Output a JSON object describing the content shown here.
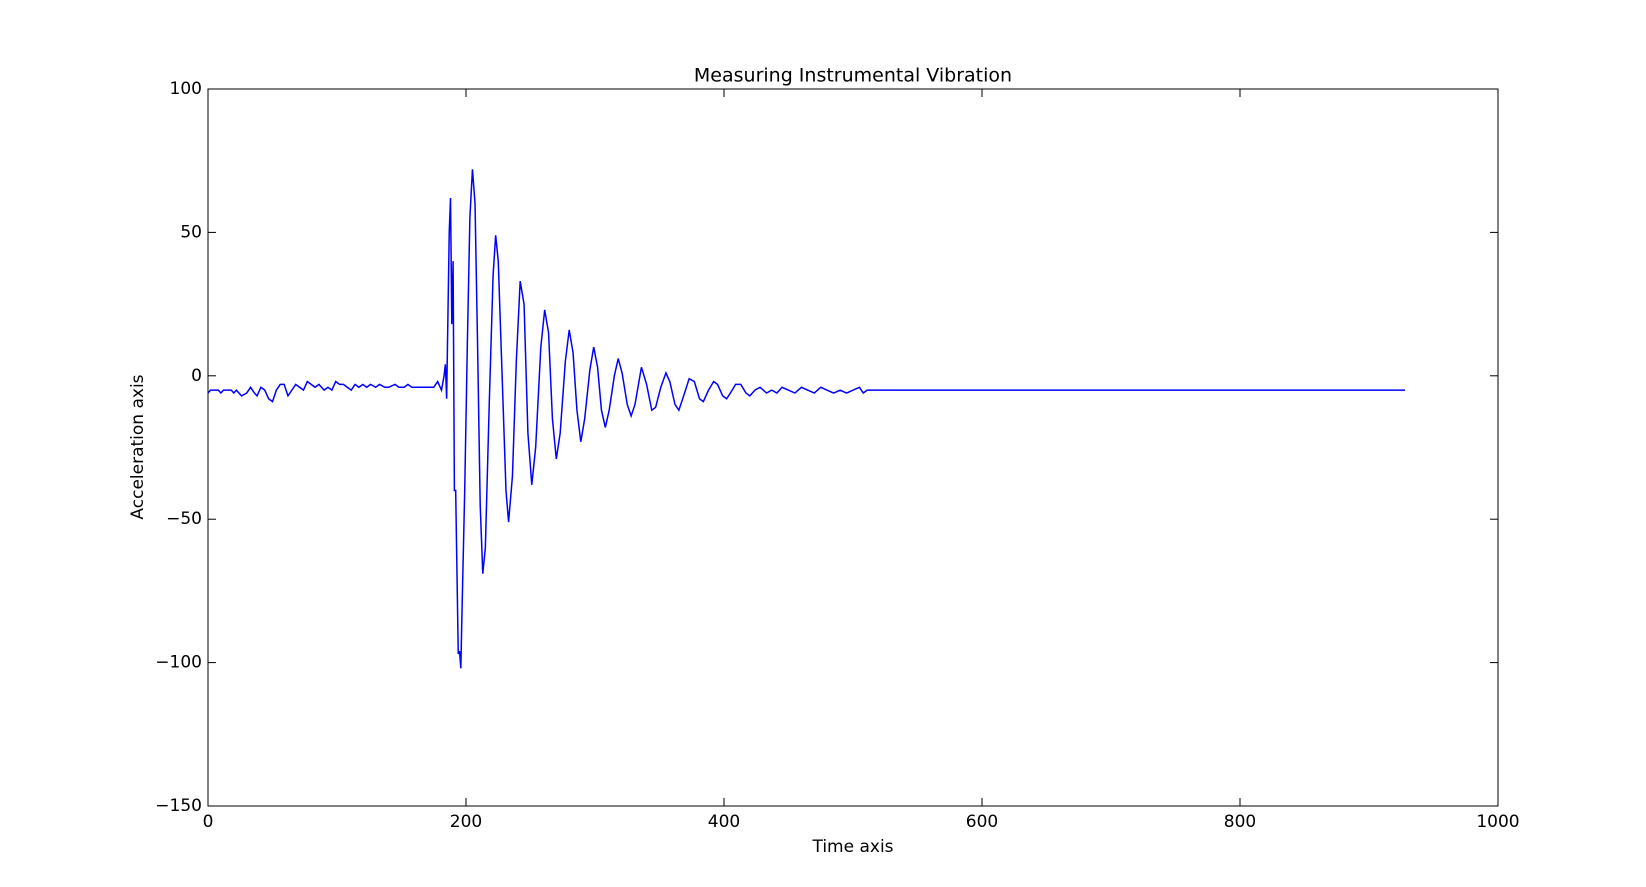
{
  "chart_data": {
    "type": "line",
    "title": "Measuring Instrumental Vibration",
    "x_label": "Time axis",
    "y_label": "Acceleration axis",
    "xlim": [
      0,
      1000
    ],
    "xticks": [
      0,
      200,
      400,
      600,
      800,
      1000
    ],
    "ylim": [
      -150,
      100
    ],
    "yticks": [
      {
        "value": -150,
        "label": "−150"
      },
      {
        "value": -100,
        "label": "−100"
      },
      {
        "value": -50,
        "label": "−50"
      },
      0,
      50,
      100
    ],
    "grid": false,
    "series": [
      {
        "color": "#0000ff",
        "x": [
          0,
          2,
          8,
          10,
          12,
          18,
          20,
          22,
          26,
          30,
          33,
          36,
          38,
          41,
          44,
          47,
          50,
          53,
          56,
          59,
          62,
          65,
          68,
          71,
          74,
          77,
          80,
          83,
          86,
          90,
          93,
          96,
          99,
          102,
          105,
          108,
          111,
          114,
          117,
          120,
          123,
          126,
          130,
          133,
          137,
          140,
          145,
          148,
          152,
          155,
          158,
          175,
          178,
          181,
          183,
          184,
          185,
          187,
          188,
          189,
          190,
          191,
          192,
          194,
          195,
          196,
          197,
          199,
          201,
          203,
          205,
          207,
          209,
          211,
          213,
          215,
          218,
          221,
          223,
          225,
          228,
          231,
          233,
          236,
          239,
          242,
          245,
          248,
          251,
          254,
          258,
          261,
          264,
          267,
          270,
          273,
          277,
          280,
          283,
          286,
          289,
          292,
          296,
          299,
          302,
          305,
          308,
          311,
          315,
          318,
          321,
          325,
          328,
          331,
          336,
          340,
          344,
          347,
          351,
          355,
          358,
          362,
          365,
          368,
          373,
          377,
          381,
          384,
          388,
          392,
          395,
          399,
          402,
          405,
          409,
          413,
          417,
          420,
          424,
          428,
          433,
          437,
          441,
          445,
          450,
          455,
          460,
          465,
          470,
          475,
          480,
          485,
          490,
          495,
          500,
          505,
          508,
          511,
          928
        ],
        "values": [
          -6,
          -5,
          -5,
          -6,
          -5,
          -5,
          -6,
          -5,
          -7,
          -6,
          -4,
          -6,
          -7,
          -4,
          -5,
          -8,
          -9,
          -5,
          -3,
          -3,
          -7,
          -5,
          -3,
          -4,
          -5,
          -2,
          -3,
          -4,
          -3,
          -5,
          -4,
          -5,
          -2,
          -3,
          -3,
          -4,
          -5,
          -3,
          -4,
          -3,
          -4,
          -3,
          -4,
          -3,
          -4,
          -4,
          -3,
          -4,
          -4,
          -3,
          -4,
          -4,
          -2,
          -5,
          0,
          4,
          -8,
          50,
          62,
          18,
          40,
          -40,
          -40,
          -97,
          -96,
          -102,
          -80,
          -40,
          10,
          55,
          72,
          60,
          10,
          -45,
          -69,
          -60,
          -10,
          35,
          49,
          40,
          0,
          -40,
          -51,
          -35,
          5,
          33,
          25,
          -20,
          -38,
          -25,
          10,
          23,
          15,
          -15,
          -29,
          -20,
          5,
          16,
          8,
          -12,
          -23,
          -15,
          2,
          10,
          3,
          -12,
          -18,
          -12,
          0,
          6,
          1,
          -10,
          -14,
          -10,
          3,
          -3,
          -12,
          -11,
          -4,
          1,
          -2,
          -10,
          -12,
          -8,
          -1,
          -2,
          -8,
          -9,
          -5,
          -2,
          -3,
          -7,
          -8,
          -6,
          -3,
          -3,
          -6,
          -7,
          -5,
          -4,
          -6,
          -5,
          -6,
          -4,
          -5,
          -6,
          -4,
          -5,
          -6,
          -4,
          -5,
          -6,
          -5,
          -6,
          -5,
          -4,
          -6,
          -5,
          -5
        ]
      }
    ]
  }
}
